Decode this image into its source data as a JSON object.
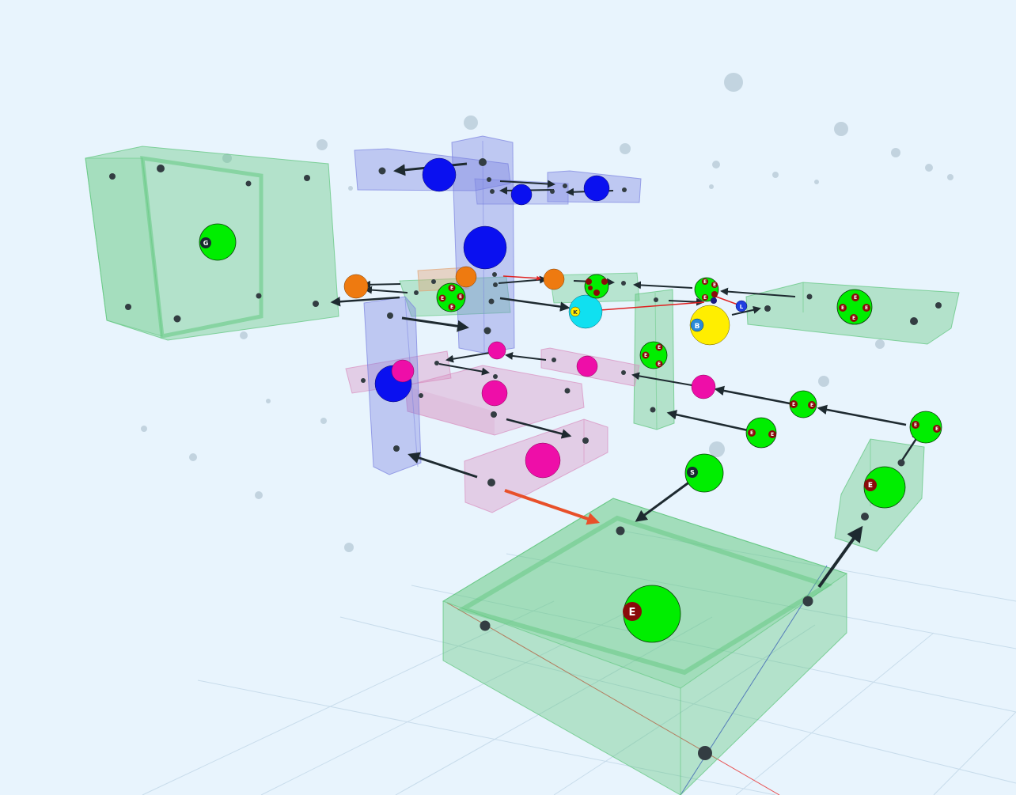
{
  "scene": {
    "background": "#e8f4fd",
    "colors": {
      "green_box": "#5cc57a",
      "blue_box": "#7a82e0",
      "pink_box": "#d88fbf",
      "orange_box": "#e2a272",
      "green_ball": "#00ee00",
      "blue_ball": "#0a10f0",
      "magenta_ball": "#ee0ea8",
      "orange_ball": "#ee7a10",
      "cyan_ball": "#10e0f0",
      "yellow_ball": "#ffee00",
      "badge_red": "#8a0a0a",
      "arrow_dark": "#1e2a30",
      "arrow_orange": "#e8502a",
      "link_red": "#e02020"
    },
    "badges": [
      {
        "id": "G",
        "label": "G"
      },
      {
        "id": "S",
        "label": "S"
      },
      {
        "id": "K",
        "label": "K"
      },
      {
        "id": "B",
        "label": "B"
      },
      {
        "id": "L",
        "label": "L"
      },
      {
        "id": "E_big",
        "label": "E"
      },
      {
        "id": "E_rest",
        "label": "E"
      }
    ],
    "icons": [
      "sphere-node-icon",
      "box-volume-icon",
      "arrow-connector-icon"
    ]
  }
}
